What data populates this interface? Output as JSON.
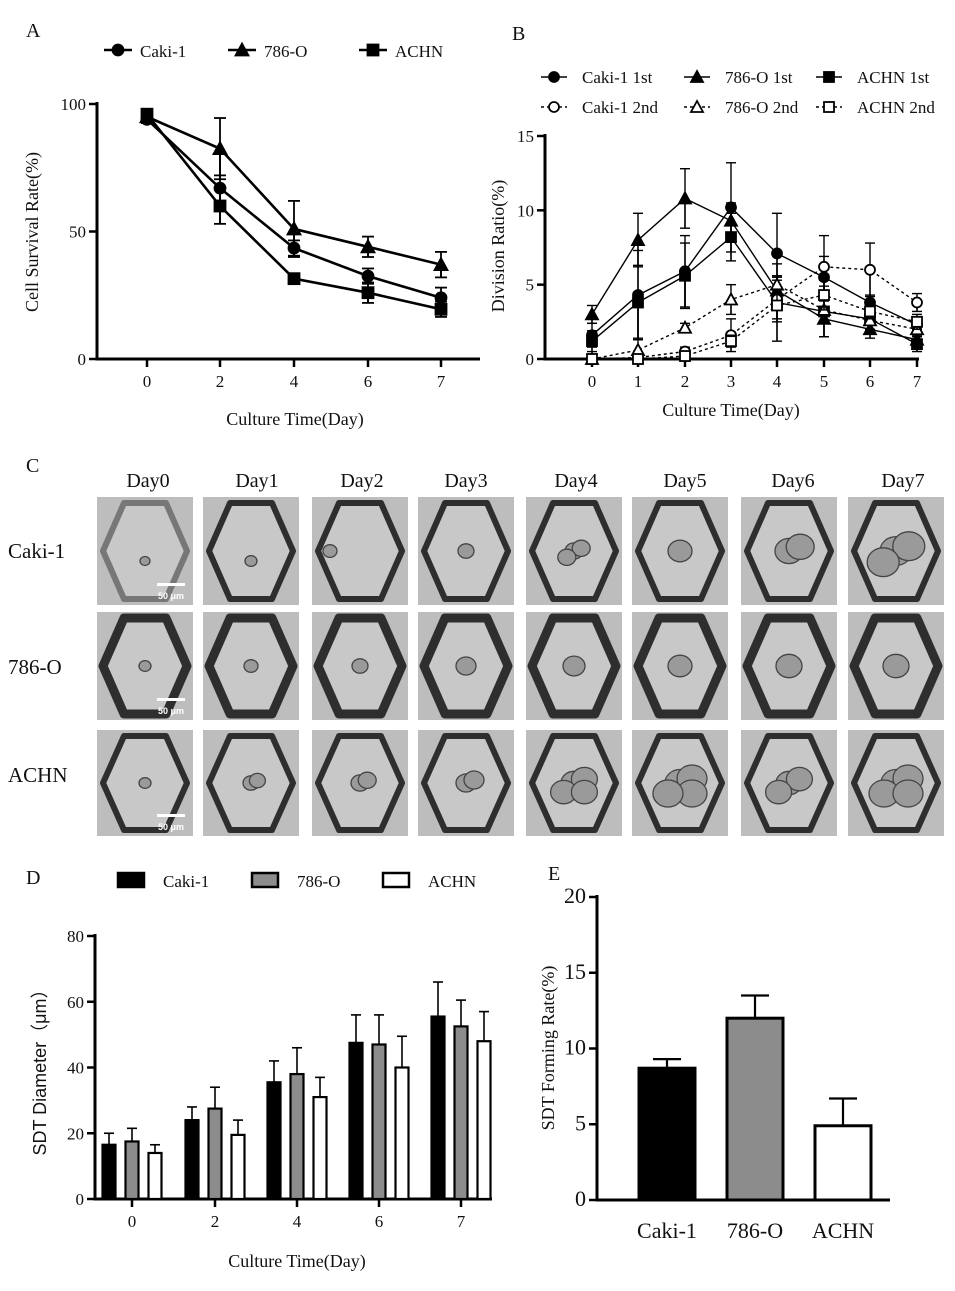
{
  "panel_labels": {
    "a": "A",
    "b": "B",
    "c": "C",
    "d": "D",
    "e": "E"
  },
  "colors": {
    "black": "#000000",
    "grey": "#8c8c8c",
    "white": "#ffffff",
    "well": "#c2c2c2",
    "well_border": "#2e2e2e"
  },
  "chart_data": [
    {
      "id": "A",
      "type": "line",
      "xlabel": "Culture Time(Day)",
      "ylabel": "Cell Survival Rate(%)",
      "categories": [
        "0",
        "2",
        "4",
        "6",
        "7"
      ],
      "ylim": [
        0,
        100
      ],
      "yticks": [
        "0",
        "50",
        "100"
      ],
      "legend_placement": "top",
      "series": [
        {
          "name": "Caki-1",
          "marker": "circle",
          "values": [
            94,
            67,
            43.5,
            32.5,
            24
          ],
          "err": [
            1.5,
            5,
            3,
            3,
            4
          ]
        },
        {
          "name": "786-O",
          "marker": "triangle",
          "values": [
            95,
            82.5,
            51,
            44,
            37
          ],
          "err": [
            1.5,
            12,
            11,
            4,
            5
          ]
        },
        {
          "name": "ACHN",
          "marker": "square",
          "values": [
            96,
            60,
            31.5,
            26,
            19.5
          ],
          "err": [
            1.5,
            7,
            2,
            4,
            3
          ]
        }
      ]
    },
    {
      "id": "B",
      "type": "line",
      "xlabel": "Culture Time(Day)",
      "ylabel": "Division Ratio(%)",
      "categories": [
        "0",
        "1",
        "2",
        "3",
        "4",
        "5",
        "6",
        "7"
      ],
      "ylim": [
        0,
        15
      ],
      "yticks": [
        "0",
        "5",
        "10",
        "15"
      ],
      "legend_placement": "top",
      "series": [
        {
          "name": "Caki-1 1st",
          "marker": "circle",
          "filled": true,
          "dashed": false,
          "values": [
            1.6,
            4.3,
            5.9,
            10.2,
            7.1,
            5.5,
            3.8,
            2.3
          ],
          "err": [
            0.8,
            3,
            2.4,
            3,
            2.7,
            1.4,
            0.5,
            0.3
          ]
        },
        {
          "name": "786-O 1st",
          "marker": "triangle",
          "filled": true,
          "dashed": false,
          "values": [
            3.0,
            8.0,
            10.8,
            9.3,
            4.6,
            2.7,
            2.0,
            1.3
          ],
          "err": [
            0.6,
            1.8,
            2,
            1.2,
            1,
            1.2,
            0.6,
            0.3
          ]
        },
        {
          "name": "ACHN 1st",
          "marker": "square",
          "filled": true,
          "dashed": false,
          "values": [
            1.2,
            3.8,
            5.6,
            8.2,
            3.8,
            3.2,
            2.7,
            1.0
          ],
          "err": [
            0.7,
            2.5,
            2.2,
            1.6,
            2.6,
            1.7,
            0.8,
            0.5
          ]
        },
        {
          "name": "Caki-1 2nd",
          "marker": "circle",
          "filled": false,
          "dashed": true,
          "values": [
            0,
            0.1,
            0.5,
            1.6,
            4.0,
            6.2,
            6.0,
            3.8
          ],
          "err": [
            0,
            0.1,
            0.3,
            1.1,
            1.3,
            2.1,
            1.8,
            0.6
          ]
        },
        {
          "name": "786-O 2nd",
          "marker": "triangle",
          "filled": false,
          "dashed": true,
          "values": [
            0,
            0.6,
            2.1,
            4.0,
            5.0,
            3.3,
            2.6,
            2.0
          ],
          "err": [
            0,
            0.8,
            0.3,
            1,
            0.5,
            0.9,
            0.6,
            0.5
          ]
        },
        {
          "name": "ACHN 2nd",
          "marker": "square",
          "filled": false,
          "dashed": true,
          "values": [
            0,
            0,
            0.2,
            1.2,
            3.6,
            4.3,
            3.2,
            2.5
          ],
          "err": [
            0,
            0,
            0.2,
            0.4,
            1.1,
            1,
            0.5,
            0.5
          ]
        }
      ]
    },
    {
      "id": "D",
      "type": "bar",
      "xlabel": "Culture Time(Day)",
      "ylabel": "SDT Diameter（μm）",
      "categories": [
        "0",
        "2",
        "4",
        "6",
        "7"
      ],
      "ylim": [
        0,
        80
      ],
      "yticks": [
        "0",
        "20",
        "40",
        "60",
        "80"
      ],
      "legend_placement": "top",
      "series": [
        {
          "name": "Caki-1",
          "fill": "#000000",
          "values": [
            16.5,
            24,
            35.5,
            47.5,
            55.5
          ],
          "err": [
            3.5,
            4,
            6.5,
            8.5,
            10.5
          ]
        },
        {
          "name": "786-O",
          "fill": "#8c8c8c",
          "values": [
            17.5,
            27.5,
            38,
            47,
            52.5
          ],
          "err": [
            4,
            6.5,
            8,
            9,
            8
          ]
        },
        {
          "name": "ACHN",
          "fill": "#ffffff",
          "values": [
            14,
            19.5,
            31,
            40,
            48
          ],
          "err": [
            2.5,
            4.5,
            6,
            9.5,
            9
          ]
        }
      ]
    },
    {
      "id": "E",
      "type": "bar",
      "xlabel": "",
      "ylabel": "SDT Forming Rate(%)",
      "categories": [
        "Caki-1",
        "786-O",
        "ACHN"
      ],
      "ylim": [
        0,
        20
      ],
      "yticks": [
        "0",
        "5",
        "10",
        "15",
        "20"
      ],
      "values": [
        8.7,
        12.0,
        4.9
      ],
      "err": [
        0.6,
        1.5,
        1.8
      ],
      "fills": [
        "#000000",
        "#8c8c8c",
        "#ffffff"
      ]
    }
  ],
  "micrographs": {
    "days": [
      "Day0",
      "Day1",
      "Day2",
      "Day3",
      "Day4",
      "Day5",
      "Day6",
      "Day7"
    ],
    "cell_lines": [
      "Caki-1",
      "786-O",
      "ACHN"
    ],
    "scale_bar": "50 μm"
  }
}
